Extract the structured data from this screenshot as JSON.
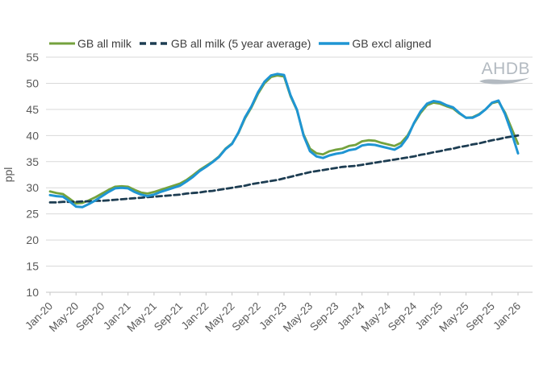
{
  "page": {
    "background": "#ffffff"
  },
  "legend": [
    {
      "label": "GB all milk",
      "color": "#74a23e",
      "dash": null
    },
    {
      "label": "GB all milk (5 year average)",
      "color": "#1d3d52",
      "dash": "7,4"
    },
    {
      "label": "GB excl aligned",
      "color": "#1f95d3",
      "dash": null
    }
  ],
  "logo": {
    "text": "AHDB",
    "color": "#b3bac1"
  },
  "colors": {
    "gridline": "#d9d9d9",
    "axis_line": "#c6c6c6",
    "axis_text": "#595959",
    "legend_text": "#3e3e3e"
  },
  "chart_data": {
    "type": "line",
    "title": "",
    "xlabel": "",
    "ylabel": "ppl",
    "ylim": [
      10,
      55
    ],
    "yticks": [
      10,
      15,
      20,
      25,
      30,
      35,
      40,
      45,
      50,
      55
    ],
    "grid": "horizontal only",
    "legend_position": "top",
    "x_unit": "monthly, Jan-20 to Jan-26 (73 points)",
    "xtick_every_months": 4,
    "xtick_labels": [
      "Jan-20",
      "May-20",
      "Sep-20",
      "Jan-21",
      "May-21",
      "Sep-21",
      "Jan-22",
      "May-22",
      "Sep-22",
      "Jan-23",
      "May-23",
      "Sep-23",
      "Jan-24",
      "May-24",
      "Sep-24",
      "Jan-25",
      "May-25",
      "Sep-25",
      "Jan-26"
    ],
    "series": [
      {
        "name": "GB all milk",
        "color": "#74a23e",
        "dash": null,
        "width": 2.8,
        "values": [
          29.3,
          29.0,
          28.8,
          27.9,
          27.0,
          27.1,
          27.6,
          28.2,
          28.9,
          29.6,
          30.2,
          30.3,
          30.2,
          29.6,
          29.1,
          28.9,
          29.2,
          29.6,
          30.0,
          30.4,
          30.8,
          31.5,
          32.4,
          33.4,
          34.2,
          35.0,
          36.0,
          37.5,
          38.5,
          40.5,
          43.3,
          45.4,
          48.0,
          50.0,
          51.2,
          51.5,
          51.3,
          47.5,
          44.8,
          40.2,
          37.5,
          36.6,
          36.4,
          37.0,
          37.3,
          37.5,
          38.0,
          38.2,
          38.9,
          39.1,
          39.0,
          38.6,
          38.3,
          38.0,
          38.6,
          40.0,
          42.3,
          44.3,
          45.8,
          46.3,
          46.1,
          45.6,
          45.2,
          44.2,
          43.4,
          43.5,
          44.1,
          45.0,
          46.2,
          46.5,
          44.4,
          41.4,
          38.4
        ]
      },
      {
        "name": "GB all milk (5 year average)",
        "color": "#1d3d52",
        "dash": "7,4",
        "width": 2.8,
        "values": [
          27.2,
          27.2,
          27.3,
          27.3,
          27.3,
          27.4,
          27.4,
          27.5,
          27.5,
          27.6,
          27.7,
          27.8,
          27.9,
          28.0,
          28.1,
          28.2,
          28.3,
          28.4,
          28.5,
          28.6,
          28.7,
          28.9,
          29.0,
          29.1,
          29.3,
          29.4,
          29.6,
          29.8,
          30.0,
          30.2,
          30.4,
          30.7,
          30.9,
          31.1,
          31.3,
          31.5,
          31.8,
          32.1,
          32.4,
          32.7,
          33.0,
          33.2,
          33.4,
          33.6,
          33.8,
          34.0,
          34.1,
          34.2,
          34.4,
          34.6,
          34.8,
          35.0,
          35.2,
          35.4,
          35.6,
          35.8,
          36.0,
          36.3,
          36.5,
          36.8,
          37.0,
          37.3,
          37.5,
          37.8,
          38.0,
          38.3,
          38.5,
          38.8,
          39.1,
          39.3,
          39.6,
          39.8,
          40.0
        ]
      },
      {
        "name": "GB excl aligned",
        "color": "#1f95d3",
        "dash": null,
        "width": 3,
        "values": [
          28.6,
          28.4,
          28.3,
          27.4,
          26.4,
          26.3,
          26.9,
          27.6,
          28.4,
          29.2,
          29.9,
          30.0,
          29.9,
          29.2,
          28.7,
          28.4,
          28.7,
          29.2,
          29.6,
          30.0,
          30.4,
          31.2,
          32.1,
          33.2,
          34.0,
          34.9,
          35.9,
          37.4,
          38.4,
          40.6,
          43.5,
          45.6,
          48.3,
          50.3,
          51.5,
          51.8,
          51.6,
          47.7,
          44.9,
          40.0,
          37.0,
          36.0,
          35.7,
          36.2,
          36.5,
          36.7,
          37.2,
          37.4,
          38.1,
          38.3,
          38.2,
          37.9,
          37.6,
          37.3,
          38.0,
          39.7,
          42.4,
          44.6,
          46.1,
          46.6,
          46.4,
          45.8,
          45.4,
          44.3,
          43.4,
          43.4,
          44.0,
          45.0,
          46.3,
          46.7,
          44.1,
          40.6,
          36.6
        ]
      }
    ]
  }
}
